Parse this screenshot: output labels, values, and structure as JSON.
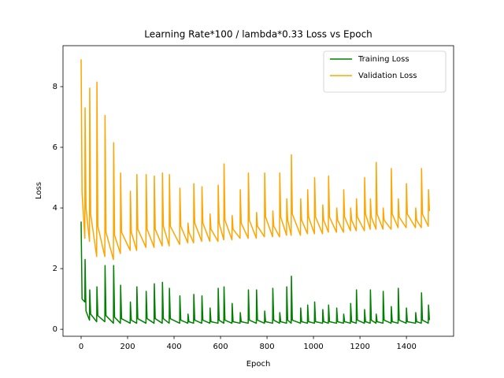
{
  "chart_data": {
    "type": "line",
    "title": "Learning Rate*100 / lambda*0.33 Loss vs Epoch",
    "xlabel": "Epoch",
    "ylabel": "Loss",
    "xlim": [
      -78,
      1603
    ],
    "ylim": [
      -0.23,
      9.35
    ],
    "xticks": [
      0,
      200,
      400,
      600,
      800,
      1000,
      1200,
      1400
    ],
    "yticks": [
      0,
      2,
      4,
      6,
      8
    ],
    "legend": "upper right",
    "x": [
      0,
      4,
      16,
      17,
      21,
      36,
      37,
      41,
      67,
      68,
      72,
      102,
      103,
      107,
      139,
      140,
      144,
      169,
      170,
      174,
      211,
      212,
      216,
      239,
      240,
      244,
      279,
      280,
      284,
      314,
      315,
      319,
      349,
      350,
      354,
      379,
      380,
      384,
      424,
      425,
      429,
      459,
      460,
      464,
      484,
      485,
      489,
      519,
      520,
      524,
      554,
      555,
      559,
      589,
      590,
      594,
      614,
      615,
      619,
      649,
      650,
      654,
      684,
      685,
      689,
      719,
      720,
      724,
      754,
      755,
      759,
      789,
      790,
      794,
      824,
      825,
      829,
      854,
      855,
      859,
      884,
      885,
      889,
      904,
      905,
      909,
      944,
      945,
      949,
      974,
      975,
      979,
      1004,
      1005,
      1009,
      1039,
      1040,
      1044,
      1064,
      1065,
      1069,
      1099,
      1100,
      1104,
      1129,
      1130,
      1134,
      1159,
      1160,
      1164,
      1184,
      1185,
      1189,
      1219,
      1220,
      1224,
      1244,
      1245,
      1249,
      1269,
      1270,
      1274,
      1299,
      1300,
      1304,
      1334,
      1335,
      1339,
      1364,
      1365,
      1369,
      1399,
      1400,
      1404,
      1439,
      1440,
      1444,
      1464,
      1465,
      1469,
      1494,
      1495,
      1499
    ],
    "series": [
      {
        "name": "Training Loss",
        "color": "#008000",
        "values": [
          3.55,
          1.0,
          0.9,
          2.3,
          0.6,
          0.3,
          1.3,
          0.5,
          0.25,
          1.4,
          0.45,
          0.25,
          2.1,
          0.45,
          0.2,
          2.1,
          0.4,
          0.2,
          1.45,
          0.35,
          0.2,
          0.9,
          0.3,
          0.2,
          1.4,
          0.35,
          0.2,
          1.25,
          0.35,
          0.2,
          1.5,
          0.35,
          0.2,
          1.55,
          0.35,
          0.2,
          1.35,
          0.35,
          0.2,
          1.1,
          0.3,
          0.2,
          0.5,
          0.25,
          0.2,
          1.15,
          0.3,
          0.2,
          1.1,
          0.3,
          0.2,
          0.7,
          0.25,
          0.2,
          1.35,
          0.3,
          0.2,
          1.4,
          0.3,
          0.2,
          0.85,
          0.25,
          0.2,
          0.55,
          0.25,
          0.2,
          1.3,
          0.3,
          0.2,
          1.3,
          0.3,
          0.2,
          0.6,
          0.25,
          0.2,
          1.35,
          0.3,
          0.2,
          0.55,
          0.25,
          0.2,
          1.4,
          0.3,
          0.2,
          1.75,
          0.3,
          0.2,
          0.7,
          0.25,
          0.2,
          0.8,
          0.25,
          0.2,
          0.9,
          0.25,
          0.2,
          0.65,
          0.25,
          0.2,
          0.8,
          0.25,
          0.2,
          0.7,
          0.25,
          0.2,
          0.5,
          0.25,
          0.2,
          0.85,
          0.25,
          0.2,
          1.3,
          0.3,
          0.2,
          0.65,
          0.25,
          0.2,
          1.3,
          0.3,
          0.2,
          0.5,
          0.25,
          0.2,
          1.25,
          0.3,
          0.2,
          0.75,
          0.25,
          0.2,
          1.35,
          0.3,
          0.2,
          0.7,
          0.25,
          0.2,
          0.55,
          0.25,
          0.2,
          1.2,
          0.3,
          0.2,
          0.8,
          0.3
        ]
      },
      {
        "name": "Validation Loss",
        "color": "#ffa500",
        "values": [
          8.9,
          4.5,
          3.0,
          7.3,
          4.0,
          2.9,
          7.95,
          3.8,
          2.4,
          8.15,
          3.4,
          2.4,
          7.05,
          3.2,
          2.3,
          6.15,
          3.1,
          2.5,
          5.15,
          3.2,
          2.6,
          4.55,
          3.2,
          2.6,
          5.1,
          3.3,
          2.7,
          5.1,
          3.3,
          2.7,
          5.05,
          3.3,
          2.75,
          5.15,
          3.4,
          2.75,
          5.1,
          3.4,
          2.8,
          4.65,
          3.4,
          2.85,
          3.5,
          3.2,
          2.85,
          4.8,
          3.5,
          2.9,
          4.7,
          3.5,
          2.9,
          3.8,
          3.3,
          2.9,
          4.75,
          3.5,
          2.95,
          5.45,
          3.6,
          2.95,
          3.75,
          3.3,
          3.0,
          4.6,
          3.5,
          3.0,
          5.15,
          3.6,
          3.0,
          3.85,
          3.4,
          3.05,
          5.15,
          3.7,
          3.05,
          3.9,
          3.4,
          3.05,
          5.15,
          3.7,
          3.1,
          4.3,
          3.6,
          3.1,
          5.75,
          3.8,
          3.1,
          4.3,
          3.6,
          3.15,
          4.6,
          3.7,
          3.15,
          5.0,
          3.7,
          3.15,
          4.1,
          3.6,
          3.2,
          5.05,
          3.7,
          3.2,
          4.0,
          3.6,
          3.2,
          4.6,
          3.7,
          3.25,
          4.0,
          3.6,
          3.25,
          4.3,
          3.7,
          3.25,
          5.0,
          3.8,
          3.3,
          4.3,
          3.7,
          3.3,
          5.5,
          3.8,
          3.3,
          4.0,
          3.6,
          3.3,
          5.3,
          3.8,
          3.35,
          4.3,
          3.7,
          3.35,
          4.8,
          3.8,
          3.35,
          4.0,
          3.6,
          3.35,
          5.3,
          3.8,
          3.4,
          4.6,
          3.9
        ]
      }
    ]
  }
}
